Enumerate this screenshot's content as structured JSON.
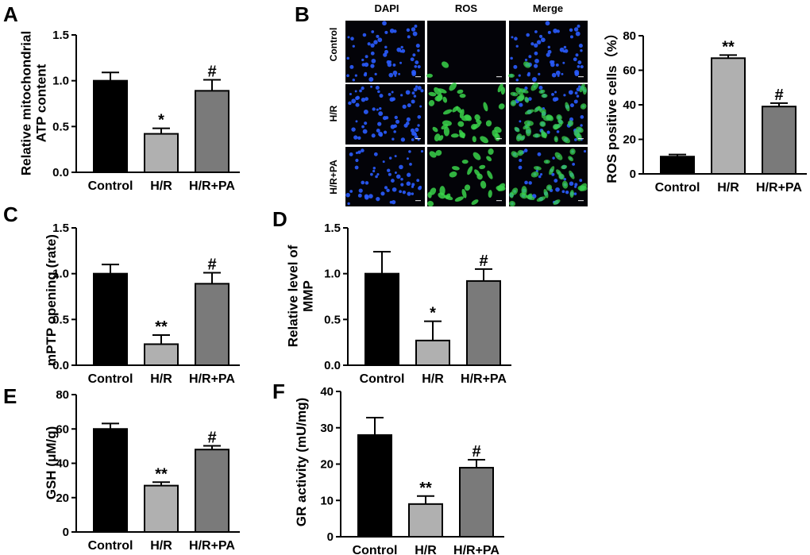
{
  "panels": [
    {
      "letter": "A"
    },
    {
      "letter": "B"
    },
    {
      "letter": "C"
    },
    {
      "letter": "D"
    },
    {
      "letter": "E"
    },
    {
      "letter": "F"
    }
  ],
  "microscopy": {
    "column_headers": [
      "DAPI",
      "ROS",
      "Merge"
    ],
    "row_labels": [
      "Control",
      "H/R",
      "H/R+PA"
    ],
    "colors": {
      "dapi": "#2a5cff",
      "ros": "#39d24a",
      "background": "#030308"
    }
  },
  "colors": {
    "control": "#000000",
    "hr": "#b0b0b0",
    "hrpa": "#7a7a7a"
  },
  "chart_data": [
    {
      "id": "A",
      "type": "bar",
      "categories": [
        "Control",
        "H/R",
        "H/R+PA"
      ],
      "values": [
        1.0,
        0.42,
        0.89
      ],
      "errors": [
        0.09,
        0.06,
        0.12
      ],
      "significance": [
        "",
        "*",
        "#"
      ],
      "ylabel_lines": [
        "Relative mitochondrial",
        "ATP content"
      ],
      "ylim": [
        0,
        1.5
      ],
      "yticks": [
        "0.0",
        "0.5",
        "1.0",
        "1.5"
      ]
    },
    {
      "id": "B",
      "type": "bar",
      "categories": [
        "Control",
        "H/R",
        "H/R+PA"
      ],
      "values": [
        10,
        67,
        39
      ],
      "errors": [
        1.2,
        1.8,
        2.0
      ],
      "significance": [
        "",
        "**",
        "#"
      ],
      "ylabel_lines": [
        "ROS positive cells（%）"
      ],
      "ylim": [
        0,
        80
      ],
      "yticks": [
        "0",
        "20",
        "40",
        "60",
        "80"
      ]
    },
    {
      "id": "C",
      "type": "bar",
      "categories": [
        "Control",
        "H/R",
        "H/R+PA"
      ],
      "values": [
        1.0,
        0.23,
        0.89
      ],
      "errors": [
        0.1,
        0.1,
        0.12
      ],
      "significance": [
        "",
        "**",
        "#"
      ],
      "ylabel_lines": [
        "mPTP opening (rate)"
      ],
      "ylim": [
        0,
        1.5
      ],
      "yticks": [
        "0.0",
        "0.5",
        "1.0",
        "1.5"
      ]
    },
    {
      "id": "D",
      "type": "bar",
      "categories": [
        "Control",
        "H/R",
        "H/R+PA"
      ],
      "values": [
        1.0,
        0.27,
        0.92
      ],
      "errors": [
        0.24,
        0.21,
        0.13
      ],
      "significance": [
        "",
        "*",
        "#"
      ],
      "ylabel_lines": [
        "Relative level of",
        "MMP"
      ],
      "ylim": [
        0,
        1.5
      ],
      "yticks": [
        "0.0",
        "0.5",
        "1.0",
        "1.5"
      ]
    },
    {
      "id": "E",
      "type": "bar",
      "categories": [
        "Control",
        "H/R",
        "H/R+PA"
      ],
      "values": [
        60,
        27,
        48
      ],
      "errors": [
        3.2,
        2.0,
        2.2
      ],
      "significance": [
        "",
        "**",
        "#"
      ],
      "ylabel_lines": [
        "GSH (μM/g)"
      ],
      "ylim": [
        0,
        80
      ],
      "yticks": [
        "0",
        "20",
        "40",
        "60",
        "80"
      ]
    },
    {
      "id": "F",
      "type": "bar",
      "categories": [
        "Control",
        "H/R",
        "H/R+PA"
      ],
      "values": [
        28,
        9,
        19
      ],
      "errors": [
        4.8,
        2.2,
        2.2
      ],
      "significance": [
        "",
        "**",
        "#"
      ],
      "ylabel_lines": [
        "GR activity (mU/mg)"
      ],
      "ylim": [
        0,
        40
      ],
      "yticks": [
        "0",
        "10",
        "20",
        "30",
        "40"
      ]
    }
  ]
}
